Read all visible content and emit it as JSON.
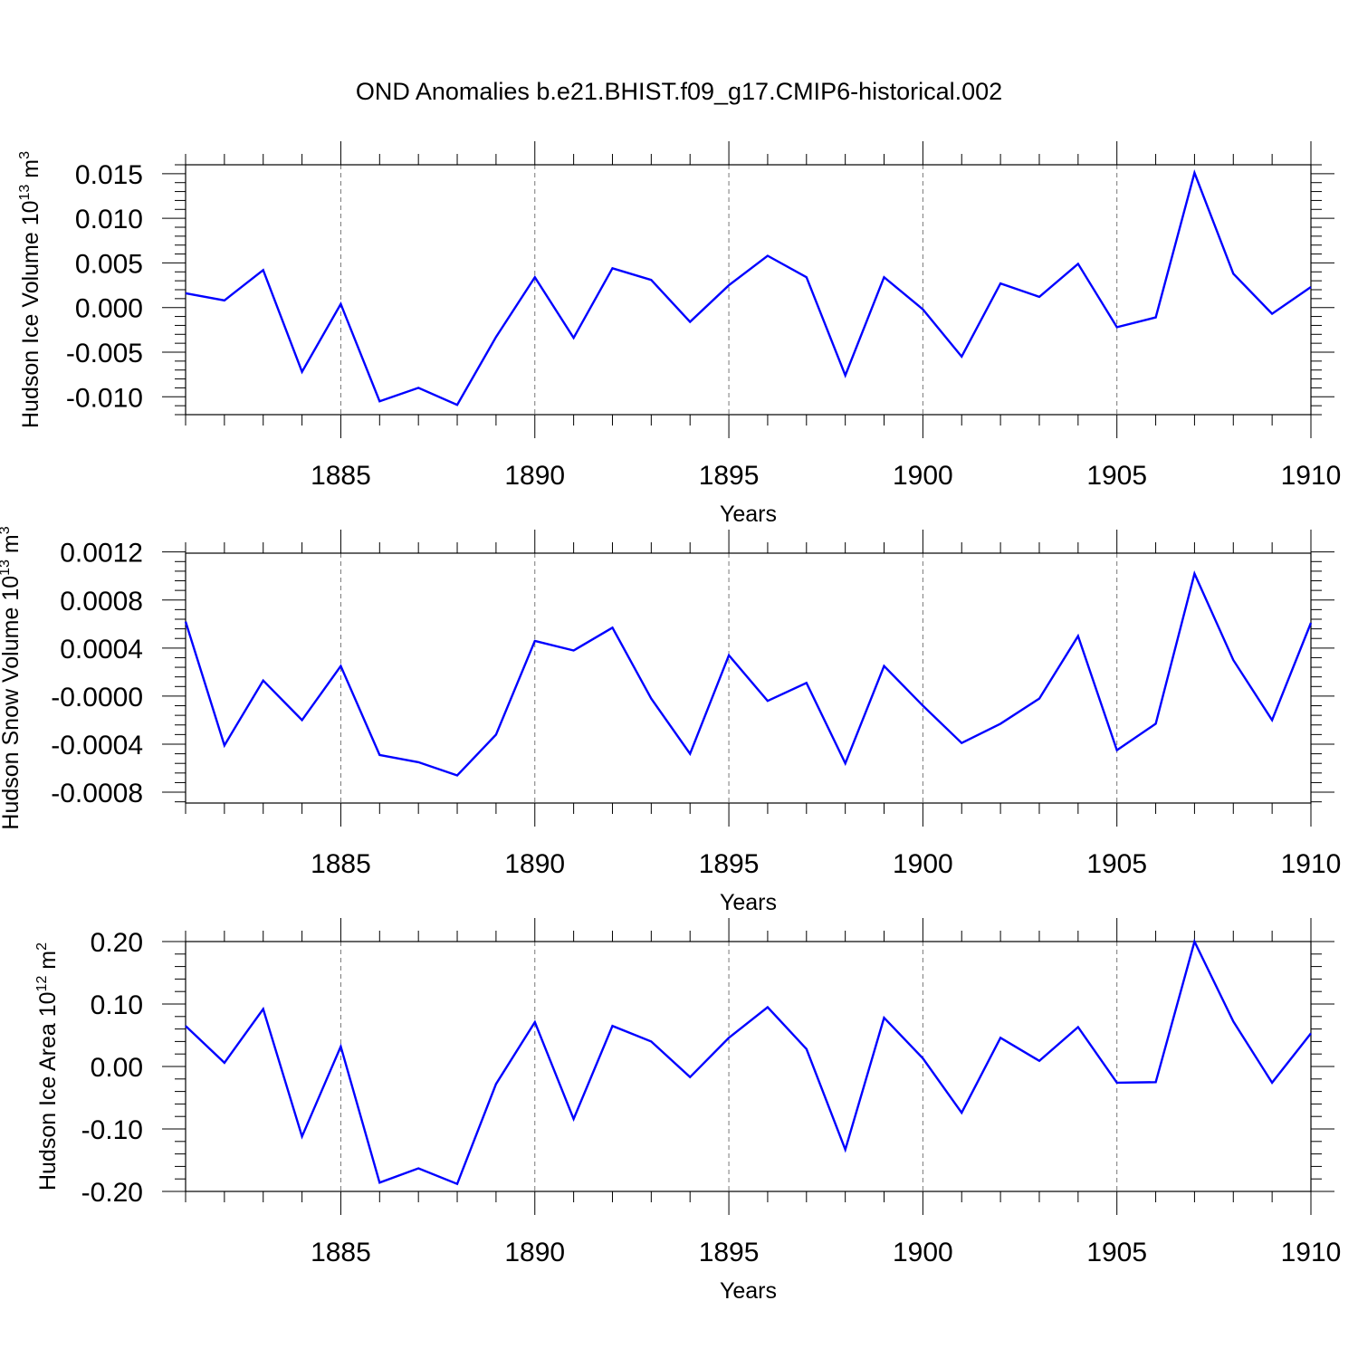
{
  "chart_data": {
    "type": "line",
    "title": "OND Anomalies b.e21.BHIST.f09_g17.CMIP6-historical.002",
    "x": [
      1881,
      1882,
      1883,
      1884,
      1885,
      1886,
      1887,
      1888,
      1889,
      1890,
      1891,
      1892,
      1893,
      1894,
      1895,
      1896,
      1897,
      1898,
      1899,
      1900,
      1901,
      1902,
      1903,
      1904,
      1905,
      1906,
      1907,
      1908,
      1909,
      1910
    ],
    "xlim": [
      1881,
      1910
    ],
    "x_ticks": [
      1885,
      1890,
      1895,
      1900,
      1905,
      1910
    ],
    "x_tick_labels": [
      "1885",
      "1890",
      "1895",
      "1900",
      "1905",
      "1910"
    ],
    "grid": "dashed vertical at major x ticks",
    "line_color": "#0000ff",
    "panels": [
      {
        "ylabel": "Hudson Ice Volume 10",
        "ylabel_exp": "13",
        "ylabel_unit": "m",
        "ylabel_unit_exp": "3",
        "xlabel": "Years",
        "ylim": [
          -0.012,
          0.016
        ],
        "y_ticks": [
          -0.01,
          -0.005,
          0.0,
          0.005,
          0.01,
          0.015
        ],
        "y_tick_labels": [
          "-0.010",
          "-0.005",
          "0.000",
          "0.005",
          "0.010",
          "0.015"
        ],
        "values": [
          0.0016,
          0.0008,
          0.0042,
          -0.0072,
          0.0004,
          -0.0105,
          -0.009,
          -0.0109,
          -0.0033,
          0.0034,
          -0.0034,
          0.0044,
          0.0031,
          -0.0016,
          0.0025,
          0.0058,
          0.0034,
          -0.0076,
          0.0034,
          -0.0002,
          -0.0055,
          0.0027,
          0.0012,
          0.0049,
          -0.0022,
          -0.0011,
          0.0151,
          0.0038,
          -0.0007,
          0.0023
        ]
      },
      {
        "ylabel": "Hudson Snow Volume 10",
        "ylabel_exp": "13",
        "ylabel_unit": "m",
        "ylabel_unit_exp": "3",
        "xlabel": "Years",
        "ylim": [
          -0.00089,
          0.00119
        ],
        "y_ticks": [
          -0.0008,
          -0.0004,
          0.0,
          0.0004,
          0.0008,
          0.0012
        ],
        "y_tick_labels": [
          "-0.0008",
          "-0.0004",
          "-0.0000",
          "0.0004",
          "0.0008",
          "0.0012"
        ],
        "values": [
          0.00062,
          -0.00041,
          0.00013,
          -0.0002,
          0.00025,
          -0.00049,
          -0.00055,
          -0.00066,
          -0.00032,
          0.00046,
          0.00038,
          0.00057,
          -2e-05,
          -0.00048,
          0.00034,
          -4e-05,
          0.00011,
          -0.00056,
          0.00025,
          -8e-05,
          -0.00039,
          -0.00023,
          -2e-05,
          0.0005,
          -0.00045,
          -0.00023,
          0.00102,
          0.0003,
          -0.0002,
          0.00061
        ]
      },
      {
        "ylabel": "Hudson Ice Area 10",
        "ylabel_exp": "12",
        "ylabel_unit": "m",
        "ylabel_unit_exp": "2",
        "xlabel": "Years",
        "ylim": [
          -0.2,
          0.2
        ],
        "y_ticks": [
          -0.2,
          -0.1,
          0.0,
          0.1,
          0.2
        ],
        "y_tick_labels": [
          "-0.20",
          "-0.10",
          "0.00",
          "0.10",
          "0.20"
        ],
        "values": [
          0.065,
          0.006,
          0.092,
          -0.112,
          0.032,
          -0.186,
          -0.163,
          -0.188,
          -0.028,
          0.071,
          -0.084,
          0.065,
          0.04,
          -0.017,
          0.046,
          0.095,
          0.028,
          -0.133,
          0.078,
          0.013,
          -0.074,
          0.046,
          0.009,
          0.063,
          -0.026,
          -0.025,
          0.2,
          0.072,
          -0.026,
          0.053
        ]
      }
    ]
  }
}
